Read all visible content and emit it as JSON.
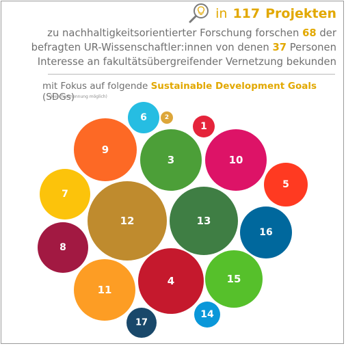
{
  "header": {
    "in": "in",
    "projects_count": "117",
    "projects_word": "Projekten",
    "line1_pre": "zu nachhaltigkeitsorientierter Forschung forschen",
    "line1_count": "68",
    "line1_post": "der",
    "line2_pre": "befragten UR-Wissenschaftler:innen von denen",
    "line2_count": "37",
    "line2_post": "Personen",
    "line3": "Interesse an fakultätsübergreifender Vernetzung bekunden",
    "focus_pre": "mit Fokus auf folgende",
    "focus_highlight": "Sustainable Development Goals",
    "focus_post": "(SDGs)",
    "note": "(Mehrfachnennung möglich)",
    "icon": "magnifier-lightbulb-icon"
  },
  "colors": {
    "accent": "#e2a800",
    "text": "#6f6f6f",
    "title": "#2f6a8c"
  },
  "chart_data": {
    "type": "bubble",
    "series": [
      {
        "label": "1",
        "color": "#e5243b"
      },
      {
        "label": "2",
        "color": "#dda63a"
      },
      {
        "label": "3",
        "color": "#4c9f38"
      },
      {
        "label": "4",
        "color": "#c5192d"
      },
      {
        "label": "5",
        "color": "#ff3a21"
      },
      {
        "label": "6",
        "color": "#26bde2"
      },
      {
        "label": "7",
        "color": "#fcc30b"
      },
      {
        "label": "8",
        "color": "#a21942"
      },
      {
        "label": "9",
        "color": "#fd6925"
      },
      {
        "label": "10",
        "color": "#dd1367"
      },
      {
        "label": "11",
        "color": "#fd9d24"
      },
      {
        "label": "12",
        "color": "#bf8b2e"
      },
      {
        "label": "13",
        "color": "#3f7e44"
      },
      {
        "label": "14",
        "color": "#0a97d9"
      },
      {
        "label": "15",
        "color": "#56c02b"
      },
      {
        "label": "16",
        "color": "#00689d"
      },
      {
        "label": "17",
        "color": "#19486a"
      }
    ]
  }
}
